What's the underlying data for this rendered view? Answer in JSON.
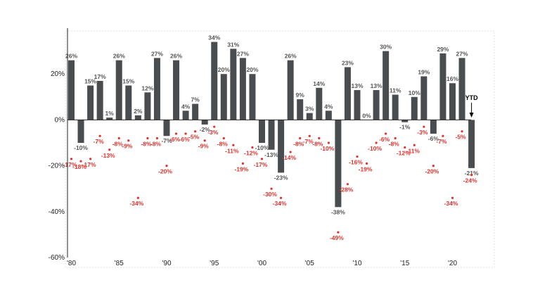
{
  "chart_data": {
    "type": "bar",
    "x": [
      1980,
      1981,
      1982,
      1983,
      1984,
      1985,
      1986,
      1987,
      1988,
      1989,
      1990,
      1991,
      1992,
      1993,
      1994,
      1995,
      1996,
      1997,
      1998,
      1999,
      2000,
      2001,
      2002,
      2003,
      2004,
      2005,
      2006,
      2007,
      2008,
      2009,
      2010,
      2011,
      2012,
      2013,
      2014,
      2015,
      2016,
      2017,
      2018,
      2019,
      2020,
      2021,
      2022
    ],
    "series": [
      {
        "values": [
          26,
          -10,
          15,
          17,
          1,
          26,
          15,
          2,
          12,
          27,
          -7,
          26,
          4,
          7,
          -2,
          34,
          20,
          31,
          27,
          20,
          -10,
          -13,
          -23,
          26,
          9,
          3,
          14,
          4,
          -38,
          23,
          13,
          0,
          13,
          30,
          11,
          -1,
          10,
          19,
          -6,
          29,
          16,
          27,
          -21
        ]
      },
      {
        "values": [
          -17,
          -18,
          -17,
          -7,
          -13,
          -8,
          -9,
          -34,
          -8,
          -8,
          -20,
          -6,
          -6,
          -5,
          -9,
          -3,
          -8,
          -11,
          -19,
          -12,
          -17,
          -30,
          -34,
          -14,
          -8,
          -7,
          -8,
          -10,
          -49,
          -28,
          -16,
          -19,
          -10,
          -6,
          -8,
          -12,
          -11,
          -3,
          -20,
          -7,
          -34,
          -5,
          -24
        ]
      }
    ],
    "bar_labels": [
      "26%",
      "-10%",
      "15%",
      "17%",
      "1%",
      "26%",
      "15%",
      "2%",
      "12%",
      "27%",
      "-7%",
      "26%",
      "4%",
      "7%",
      "-2%",
      "34%",
      "20%",
      "31%",
      "27%",
      "20%",
      "-10%",
      "-13%",
      "-23%",
      "26%",
      "9%",
      "3%",
      "14%",
      "4%",
      "-38%",
      "23%",
      "13%",
      "0%",
      "13%",
      "30%",
      "11%",
      "-1%",
      "10%",
      "19%",
      "-6%",
      "29%",
      "16%",
      "27%",
      "-21%"
    ],
    "drawdown_labels": [
      "-17%",
      "-18%",
      "-17%",
      "-7%",
      "-13%",
      "-8%",
      "-9%",
      "-34%",
      "-8%",
      "-8%",
      "-20%",
      "-6%",
      "-6%",
      "-5%",
      "-9%",
      "-3%",
      "-8%",
      "-11%",
      "-19%",
      "-12%",
      "-17%",
      "-30%",
      "-34%",
      "-14%",
      "-8%",
      "-7%",
      "-8%",
      "-10%",
      "-49%",
      "-28%",
      "-16%",
      "-19%",
      "-10%",
      "-6%",
      "-8%",
      "-12%",
      "-11%",
      "-3%",
      "-20%",
      "-7%",
      "-34%",
      "-5%",
      "-24%"
    ],
    "x_ticks": [
      {
        "year": 1980,
        "label": "'80"
      },
      {
        "year": 1985,
        "label": "'85"
      },
      {
        "year": 1990,
        "label": "'90"
      },
      {
        "year": 1995,
        "label": "'95"
      },
      {
        "year": 2000,
        "label": "'00"
      },
      {
        "year": 2005,
        "label": "'05"
      },
      {
        "year": 2010,
        "label": "'10"
      },
      {
        "year": 2015,
        "label": "'15"
      },
      {
        "year": 2020,
        "label": "'20"
      }
    ],
    "y_ticks": [
      {
        "value": 20,
        "label": "20%"
      },
      {
        "value": 0,
        "label": "0%"
      },
      {
        "value": -20,
        "label": "-20%"
      },
      {
        "value": -40,
        "label": "-40%"
      },
      {
        "value": -60,
        "label": "-60%"
      }
    ],
    "ylim": [
      -60,
      40
    ],
    "annotation": "YTD",
    "colors": {
      "bar": "#4a4d50",
      "drawdown": "#e0322d"
    },
    "grid": false
  }
}
